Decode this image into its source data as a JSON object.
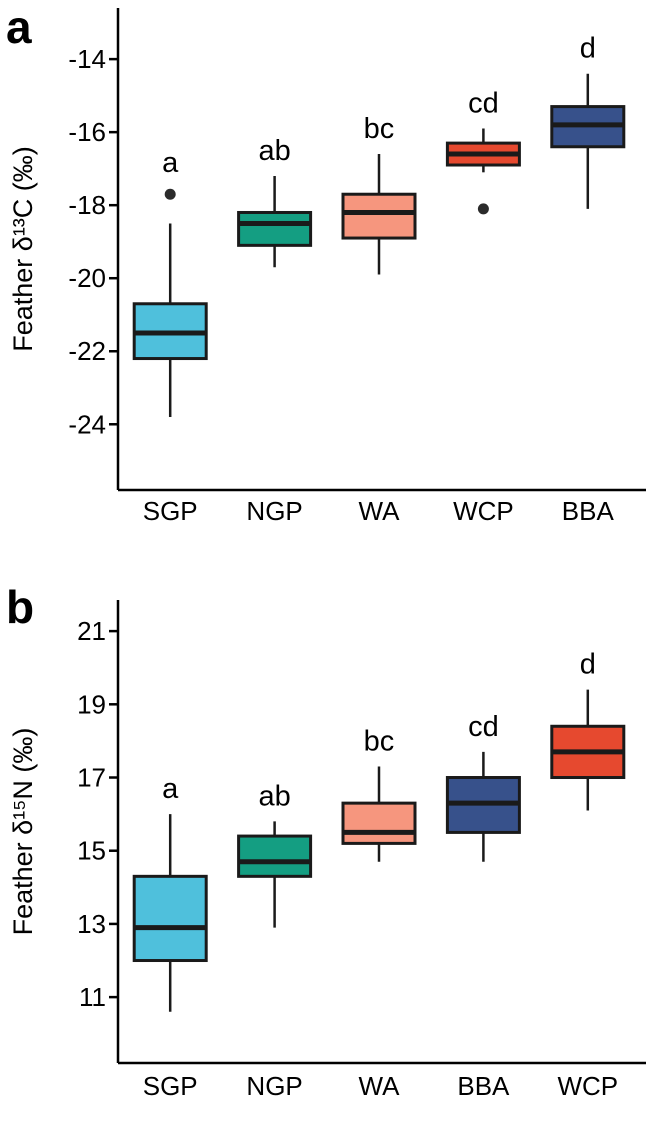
{
  "chart_data": [
    {
      "type": "boxplot",
      "panel_label": "a",
      "ylabel": "Feather δ¹³C (‰)",
      "ylim": [
        -25.8,
        -12.6
      ],
      "yticks": [
        -14,
        -16,
        -18,
        -20,
        -22,
        -24
      ],
      "categories": [
        "SGP",
        "NGP",
        "WA",
        "WCP",
        "BBA"
      ],
      "significance_letters": [
        "a",
        "ab",
        "bc",
        "cd",
        "d"
      ],
      "outlier_color": "#2b2b2b",
      "boxes": [
        {
          "group": "SGP",
          "letter": "a",
          "color": "#4FC0DC",
          "whisker_low": -23.8,
          "q1": -22.2,
          "median": -21.5,
          "q3": -20.7,
          "whisker_high": -18.5,
          "outliers": [
            -17.7
          ]
        },
        {
          "group": "NGP",
          "letter": "ab",
          "color": "#149E82",
          "whisker_low": -19.7,
          "q1": -19.1,
          "median": -18.5,
          "q3": -18.2,
          "whisker_high": -17.2,
          "outliers": []
        },
        {
          "group": "WA",
          "letter": "bc",
          "color": "#F6967E",
          "whisker_low": -19.9,
          "q1": -18.9,
          "median": -18.2,
          "q3": -17.7,
          "whisker_high": -16.6,
          "outliers": []
        },
        {
          "group": "WCP",
          "letter": "cd",
          "color": "#E6492F",
          "whisker_low": -17.1,
          "q1": -16.9,
          "median": -16.6,
          "q3": -16.3,
          "whisker_high": -15.9,
          "outliers": [
            -18.1
          ]
        },
        {
          "group": "BBA",
          "letter": "d",
          "color": "#37518B",
          "whisker_low": -18.1,
          "q1": -16.4,
          "median": -15.8,
          "q3": -15.3,
          "whisker_high": -14.4,
          "outliers": []
        }
      ]
    },
    {
      "type": "boxplot",
      "panel_label": "b",
      "ylabel": "Feather δ¹⁵N (‰)",
      "ylim": [
        9.2,
        21.85
      ],
      "yticks": [
        21,
        19,
        17,
        15,
        13,
        11
      ],
      "categories": [
        "SGP",
        "NGP",
        "WA",
        "BBA",
        "WCP"
      ],
      "significance_letters": [
        "a",
        "ab",
        "bc",
        "cd",
        "d"
      ],
      "outlier_color": "#2b2b2b",
      "boxes": [
        {
          "group": "SGP",
          "letter": "a",
          "color": "#4FC0DC",
          "whisker_low": 10.6,
          "q1": 12.0,
          "median": 12.9,
          "q3": 14.3,
          "whisker_high": 16.0,
          "outliers": []
        },
        {
          "group": "NGP",
          "letter": "ab",
          "color": "#149E82",
          "whisker_low": 12.9,
          "q1": 14.3,
          "median": 14.7,
          "q3": 15.4,
          "whisker_high": 15.8,
          "outliers": []
        },
        {
          "group": "WA",
          "letter": "bc",
          "color": "#F6967E",
          "whisker_low": 14.7,
          "q1": 15.2,
          "median": 15.5,
          "q3": 16.3,
          "whisker_high": 17.3,
          "outliers": []
        },
        {
          "group": "BBA",
          "letter": "cd",
          "color": "#37518B",
          "whisker_low": 14.7,
          "q1": 15.5,
          "median": 16.3,
          "q3": 17.0,
          "whisker_high": 17.7,
          "outliers": []
        },
        {
          "group": "WCP",
          "letter": "d",
          "color": "#E6492F",
          "whisker_low": 16.1,
          "q1": 17.0,
          "median": 17.7,
          "q3": 18.4,
          "whisker_high": 19.4,
          "outliers": []
        }
      ]
    }
  ]
}
